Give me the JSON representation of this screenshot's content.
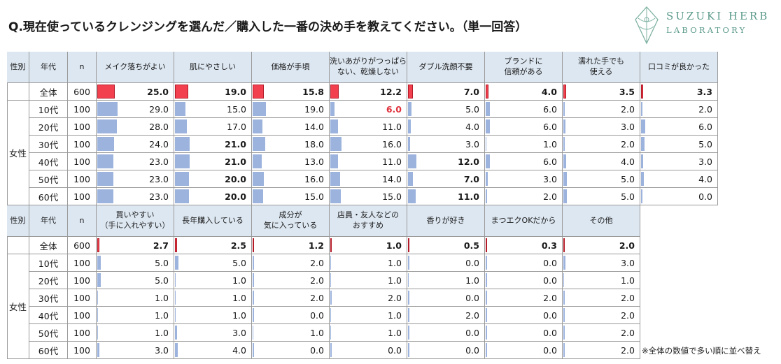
{
  "title": "Q.現在使っているクレンジングを選んだ／購入した一番の決め手を教えてください。（単一回答）",
  "logo": {
    "line1": "SUZUKI HERB",
    "line2": "LABORATORY"
  },
  "note": "※全体の数値で多い順に並べ替え",
  "colors": {
    "header_bg": "#dde7f1",
    "total_bar": "#f2404f",
    "row_bar": "#9cb3dd",
    "highlight_text": "#e0323c"
  },
  "chart_data": [
    {
      "type": "table",
      "group_label": "女性",
      "header": {
        "gender": "性別",
        "age": "年代",
        "n": "n"
      },
      "categories": [
        "メイク落ちがよい",
        "肌にやさしい",
        "価格が手頃",
        "洗いあがりがつっぱら\nない、乾燥しない",
        "ダブル洗顔不要",
        "ブランドに\n信頼がある",
        "濡れた手でも\n使える",
        "口コミが良かった"
      ],
      "rows": [
        {
          "age": "全体",
          "n": "600",
          "values": [
            25.0,
            19.0,
            15.8,
            12.2,
            7.0,
            4.0,
            3.5,
            3.3
          ]
        },
        {
          "age": "10代",
          "n": "100",
          "values": [
            29.0,
            15.0,
            19.0,
            6.0,
            5.0,
            6.0,
            2.0,
            2.0
          ]
        },
        {
          "age": "20代",
          "n": "100",
          "values": [
            28.0,
            17.0,
            14.0,
            11.0,
            4.0,
            6.0,
            3.0,
            6.0
          ]
        },
        {
          "age": "30代",
          "n": "100",
          "values": [
            24.0,
            21.0,
            18.0,
            16.0,
            3.0,
            1.0,
            2.0,
            5.0
          ]
        },
        {
          "age": "40代",
          "n": "100",
          "values": [
            23.0,
            21.0,
            13.0,
            11.0,
            12.0,
            6.0,
            4.0,
            3.0
          ]
        },
        {
          "age": "50代",
          "n": "100",
          "values": [
            23.0,
            20.0,
            16.0,
            14.0,
            7.0,
            3.0,
            5.0,
            4.0
          ]
        },
        {
          "age": "60代",
          "n": "100",
          "values": [
            23.0,
            20.0,
            15.0,
            15.0,
            11.0,
            2.0,
            5.0,
            0.0
          ]
        }
      ],
      "bold_cells": [
        [
          0,
          0
        ],
        [
          0,
          1
        ],
        [
          0,
          2
        ],
        [
          0,
          3
        ],
        [
          0,
          4
        ],
        [
          0,
          5
        ],
        [
          0,
          6
        ],
        [
          0,
          7
        ],
        [
          3,
          1
        ],
        [
          4,
          1
        ],
        [
          4,
          4
        ],
        [
          5,
          1
        ],
        [
          5,
          4
        ],
        [
          6,
          1
        ],
        [
          6,
          4
        ]
      ],
      "red_cells": [
        [
          1,
          3
        ]
      ]
    },
    {
      "type": "table",
      "group_label": "女性",
      "header": {
        "gender": "性別",
        "age": "年代",
        "n": "n"
      },
      "categories": [
        "買いやすい\n（手に入れやすい）",
        "長年購入している",
        "成分が\n気に入っている",
        "店員・友人などの\nおすすめ",
        "香りが好き",
        "まつエクOKだから",
        "その他"
      ],
      "rows": [
        {
          "age": "全体",
          "n": "600",
          "values": [
            2.7,
            2.5,
            1.2,
            1.0,
            0.5,
            0.3,
            2.0
          ]
        },
        {
          "age": "10代",
          "n": "100",
          "values": [
            5.0,
            5.0,
            2.0,
            1.0,
            0.0,
            0.0,
            3.0
          ]
        },
        {
          "age": "20代",
          "n": "100",
          "values": [
            5.0,
            1.0,
            2.0,
            1.0,
            1.0,
            0.0,
            1.0
          ]
        },
        {
          "age": "30代",
          "n": "100",
          "values": [
            1.0,
            1.0,
            2.0,
            2.0,
            0.0,
            2.0,
            2.0
          ]
        },
        {
          "age": "40代",
          "n": "100",
          "values": [
            1.0,
            1.0,
            0.0,
            1.0,
            2.0,
            0.0,
            2.0
          ]
        },
        {
          "age": "50代",
          "n": "100",
          "values": [
            1.0,
            3.0,
            1.0,
            1.0,
            0.0,
            0.0,
            2.0
          ]
        },
        {
          "age": "60代",
          "n": "100",
          "values": [
            3.0,
            4.0,
            0.0,
            0.0,
            0.0,
            0.0,
            2.0
          ]
        }
      ],
      "bold_cells": [
        [
          0,
          0
        ],
        [
          0,
          1
        ],
        [
          0,
          2
        ],
        [
          0,
          3
        ],
        [
          0,
          4
        ],
        [
          0,
          5
        ],
        [
          0,
          6
        ]
      ],
      "red_cells": []
    }
  ]
}
